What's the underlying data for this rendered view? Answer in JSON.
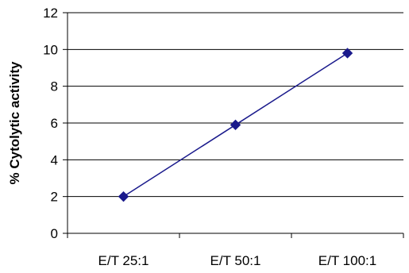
{
  "chart_data": {
    "type": "line",
    "categories": [
      "E/T 25:1",
      "E/T 50:1",
      "E/T 100:1"
    ],
    "series": [
      {
        "values": [
          2.0,
          5.9,
          9.8
        ],
        "color": "#1a1a8c",
        "marker": "diamond"
      }
    ],
    "title": "",
    "xlabel": "",
    "ylabel": "% Cytolytic activity",
    "ylim": [
      0,
      12
    ],
    "yticks": [
      0,
      2,
      4,
      6,
      8,
      10,
      12
    ],
    "grid": true,
    "grid_color": "#000000",
    "legend": "none"
  }
}
